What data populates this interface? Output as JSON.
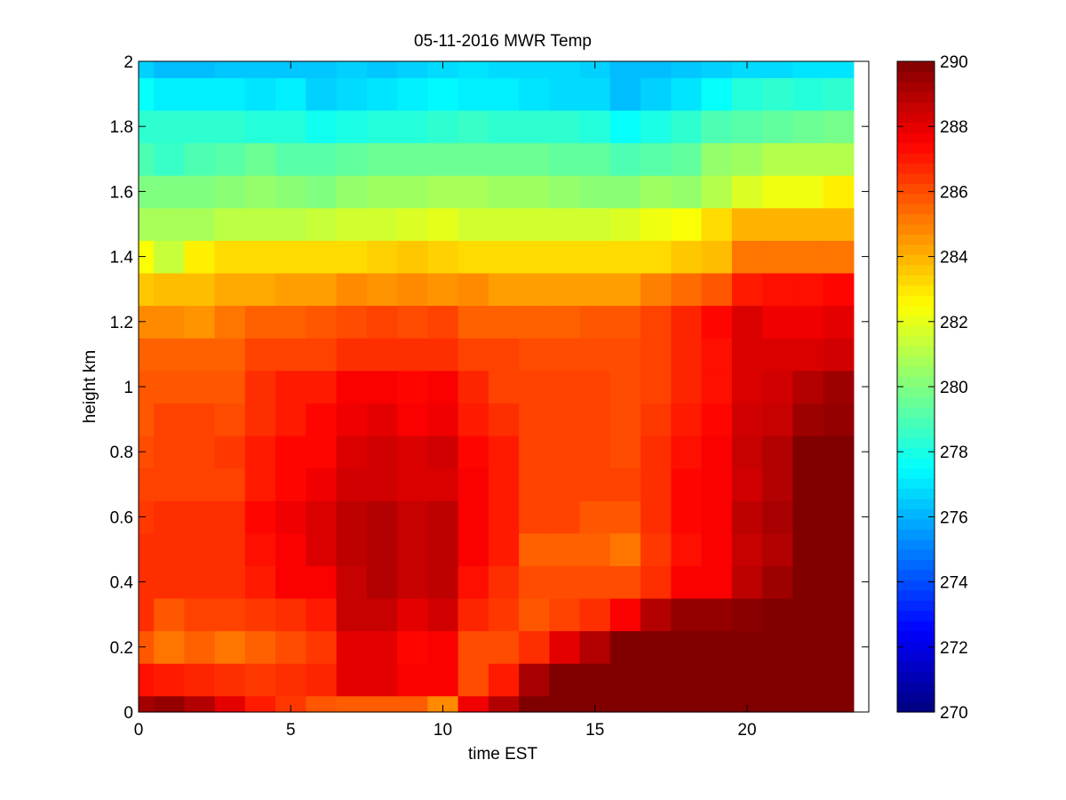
{
  "chart_data": {
    "type": "heatmap",
    "title": "05-11-2016 MWR Temp",
    "xlabel": "time EST",
    "ylabel": "height km",
    "xlim": [
      0,
      24
    ],
    "ylim": [
      0,
      2
    ],
    "xticks": [
      0,
      5,
      10,
      15,
      20
    ],
    "yticks": [
      0,
      0.2,
      0.4,
      0.6,
      0.8,
      1,
      1.2,
      1.4,
      1.6,
      1.8,
      2
    ],
    "colormap": "jet",
    "clim": [
      270,
      290
    ],
    "colorbar_ticks": [
      270,
      272,
      274,
      276,
      278,
      280,
      282,
      284,
      286,
      288,
      290
    ],
    "x_edges": [
      0,
      0.5,
      1.5,
      2.5,
      3.5,
      4.5,
      5.5,
      6.5,
      7.5,
      8.5,
      9.5,
      10.5,
      11.5,
      12.5,
      13.5,
      14.5,
      15.5,
      16.5,
      17.5,
      18.5,
      19.5,
      20.5,
      21.5,
      22.5,
      23.5
    ],
    "y_edges": [
      0,
      0.05,
      0.15,
      0.25,
      0.35,
      0.45,
      0.55,
      0.65,
      0.75,
      0.85,
      0.95,
      1.05,
      1.15,
      1.25,
      1.35,
      1.45,
      1.55,
      1.65,
      1.75,
      1.85,
      1.95,
      2.0
    ],
    "z": [
      [
        289.3,
        289.6,
        289.0,
        288.0,
        287.0,
        286.4,
        285.8,
        285.7,
        285.7,
        285.7,
        284.8,
        287.8,
        289.0,
        290,
        290,
        290,
        290,
        290,
        290,
        290,
        290,
        290,
        290,
        290
      ],
      [
        287.2,
        287.0,
        286.8,
        286.6,
        286.4,
        286.6,
        286.8,
        288.0,
        288.0,
        287.6,
        287.6,
        286.0,
        287.0,
        289.2,
        290,
        290,
        290,
        290,
        290,
        290,
        290,
        290,
        290,
        290
      ],
      [
        285.8,
        285.2,
        285.6,
        285.2,
        285.6,
        286.0,
        286.4,
        288.0,
        288.0,
        287.4,
        287.6,
        286.0,
        286.0,
        286.6,
        288.0,
        289.0,
        290,
        290,
        290,
        290,
        290,
        290,
        290,
        290
      ],
      [
        286.6,
        285.8,
        286.2,
        286.2,
        286.4,
        286.6,
        287.0,
        288.6,
        288.6,
        288.0,
        288.4,
        286.8,
        286.4,
        285.8,
        286.2,
        286.6,
        287.6,
        289.0,
        289.6,
        289.6,
        289.8,
        290,
        290,
        290
      ],
      [
        286.6,
        286.6,
        286.6,
        286.6,
        287.0,
        287.6,
        287.6,
        288.6,
        289.0,
        288.6,
        288.8,
        287.2,
        286.6,
        286.0,
        286.0,
        286.0,
        286.0,
        286.6,
        287.6,
        287.6,
        288.8,
        289.4,
        290,
        290
      ],
      [
        286.6,
        286.6,
        286.6,
        286.6,
        287.2,
        287.6,
        288.2,
        288.8,
        289.0,
        288.6,
        288.8,
        287.6,
        287.0,
        285.6,
        285.6,
        285.6,
        285.2,
        286.4,
        287.2,
        287.6,
        288.6,
        289.0,
        290,
        290
      ],
      [
        286.4,
        286.6,
        286.6,
        286.6,
        287.4,
        287.8,
        288.2,
        288.8,
        289.0,
        288.6,
        288.8,
        287.6,
        287.0,
        286.2,
        286.2,
        285.8,
        285.8,
        286.6,
        287.4,
        287.6,
        288.8,
        289.2,
        290,
        290
      ],
      [
        286.2,
        286.2,
        286.2,
        286.2,
        287.0,
        287.4,
        287.8,
        288.4,
        288.4,
        288.2,
        288.2,
        287.6,
        287.0,
        286.2,
        286.2,
        286.2,
        286.2,
        286.6,
        287.4,
        287.6,
        288.4,
        289.0,
        290,
        290
      ],
      [
        286.0,
        286.2,
        286.2,
        286.4,
        287.0,
        287.4,
        287.4,
        288.2,
        288.4,
        288.2,
        288.4,
        287.4,
        287.0,
        286.2,
        286.2,
        286.2,
        286.0,
        286.6,
        287.2,
        287.6,
        288.6,
        289.0,
        290,
        290
      ],
      [
        285.8,
        286.2,
        286.2,
        286.0,
        286.6,
        287.0,
        287.4,
        287.8,
        288.0,
        287.6,
        287.8,
        287.0,
        286.6,
        286.2,
        286.2,
        286.2,
        286.0,
        286.4,
        287.0,
        287.4,
        288.4,
        288.6,
        289.4,
        289.6
      ],
      [
        285.8,
        285.8,
        285.8,
        285.8,
        286.6,
        287.0,
        287.0,
        287.6,
        287.6,
        287.4,
        287.6,
        286.8,
        286.2,
        286.2,
        286.2,
        286.2,
        286.0,
        286.2,
        286.8,
        287.2,
        288.2,
        288.4,
        289.0,
        289.4
      ],
      [
        285.6,
        285.6,
        285.6,
        285.6,
        286.2,
        286.2,
        286.2,
        286.6,
        286.6,
        286.6,
        286.6,
        286.2,
        286.2,
        286.0,
        286.0,
        286.0,
        286.0,
        286.2,
        286.8,
        287.2,
        288.2,
        288.2,
        288.2,
        288.4
      ],
      [
        284.8,
        284.8,
        284.6,
        285.2,
        285.6,
        285.6,
        285.8,
        286.0,
        286.2,
        286.0,
        286.2,
        285.6,
        285.6,
        285.6,
        285.6,
        285.8,
        285.8,
        286.2,
        286.8,
        287.4,
        288.2,
        287.8,
        287.8,
        288.0
      ],
      [
        283.6,
        283.8,
        283.8,
        284.2,
        284.2,
        284.4,
        284.4,
        284.8,
        284.6,
        284.8,
        284.6,
        284.8,
        284.4,
        284.4,
        284.4,
        284.4,
        284.4,
        285.0,
        285.4,
        285.8,
        287.0,
        287.2,
        287.2,
        287.4
      ],
      [
        282.4,
        281.4,
        282.8,
        283.2,
        283.2,
        283.2,
        283.2,
        283.2,
        283.4,
        283.6,
        283.4,
        283.2,
        283.2,
        283.2,
        283.2,
        283.2,
        283.2,
        283.2,
        283.6,
        283.8,
        285.2,
        285.2,
        285.2,
        285.2
      ],
      [
        280.8,
        280.8,
        280.8,
        281.2,
        281.2,
        281.2,
        281.4,
        281.6,
        281.6,
        281.8,
        282.0,
        281.6,
        281.6,
        281.6,
        281.6,
        281.6,
        281.8,
        282.2,
        282.4,
        283.2,
        284.0,
        284.0,
        284.0,
        284.0
      ],
      [
        280.0,
        280.0,
        280.0,
        280.2,
        280.4,
        280.2,
        280.0,
        280.4,
        280.6,
        280.6,
        280.8,
        280.8,
        280.6,
        280.6,
        280.4,
        280.2,
        280.2,
        280.6,
        280.4,
        281.0,
        281.8,
        282.2,
        282.2,
        282.8
      ],
      [
        279.0,
        278.6,
        279.0,
        279.2,
        279.6,
        279.2,
        279.2,
        279.4,
        279.6,
        279.6,
        279.6,
        279.6,
        279.6,
        279.6,
        279.4,
        279.4,
        279.0,
        279.2,
        279.4,
        280.4,
        280.6,
        281.0,
        281.0,
        281.0
      ],
      [
        278.4,
        278.4,
        278.4,
        278.4,
        278.2,
        278.2,
        277.8,
        278.0,
        278.2,
        278.2,
        278.4,
        278.6,
        278.4,
        278.4,
        278.4,
        278.2,
        277.6,
        278.0,
        278.4,
        279.0,
        279.2,
        279.4,
        279.6,
        279.8
      ],
      [
        277.6,
        277.2,
        277.2,
        277.2,
        277.0,
        277.2,
        276.6,
        276.8,
        277.0,
        277.2,
        277.4,
        277.2,
        277.2,
        277.0,
        276.8,
        276.8,
        276.2,
        276.6,
        277.0,
        277.6,
        278.2,
        278.4,
        278.2,
        278.4
      ],
      [
        276.6,
        276.2,
        276.2,
        276.4,
        276.4,
        276.4,
        276.4,
        276.6,
        276.4,
        276.6,
        276.8,
        277.0,
        276.8,
        276.8,
        276.8,
        276.6,
        276.2,
        276.2,
        276.4,
        276.6,
        276.8,
        276.8,
        277.0,
        277.0
      ]
    ]
  }
}
